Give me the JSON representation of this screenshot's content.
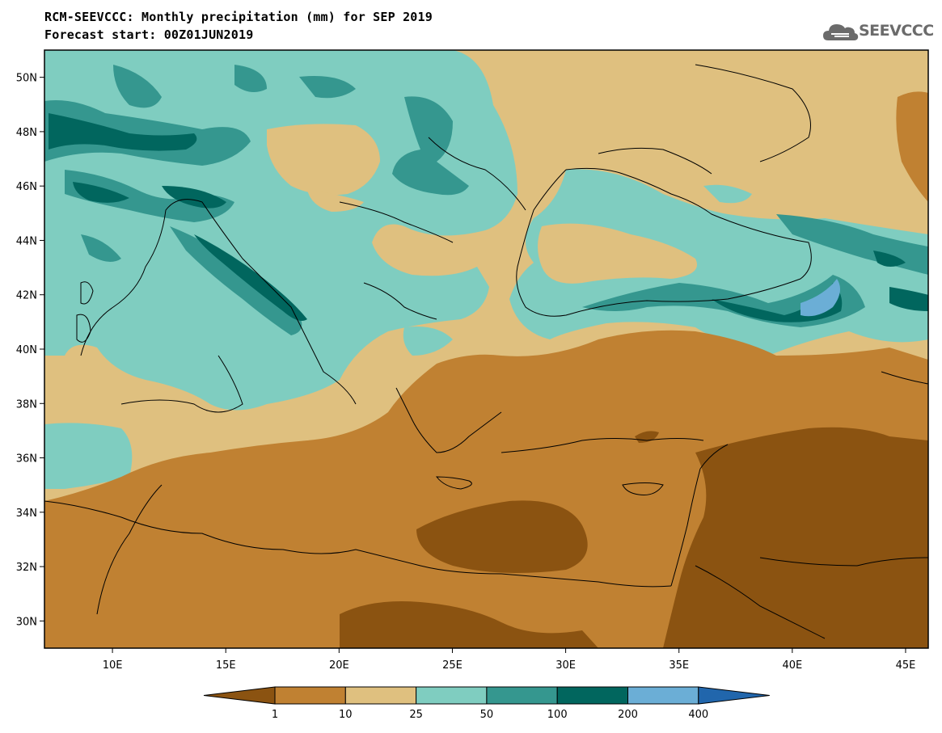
{
  "header": {
    "title_line1": "RCM-SEEVCCC: Monthly precipitation (mm) for SEP 2019",
    "title_line2": "Forecast start: 00Z01JUN2019"
  },
  "logo": {
    "text": "SEEVCCC",
    "icon": "cloud-icon"
  },
  "map": {
    "variable": "Monthly precipitation (mm)",
    "lon_range": [
      7,
      46
    ],
    "lat_range": [
      29,
      51
    ],
    "lat_ticks": [
      "50N",
      "48N",
      "46N",
      "44N",
      "42N",
      "40N",
      "38N",
      "36N",
      "34N",
      "32N",
      "30N"
    ],
    "lat_values": [
      50,
      48,
      46,
      44,
      42,
      40,
      38,
      36,
      34,
      32,
      30
    ],
    "lon_ticks": [
      "10E",
      "15E",
      "20E",
      "25E",
      "30E",
      "35E",
      "40E",
      "45E"
    ],
    "lon_values": [
      10,
      15,
      20,
      25,
      30,
      35,
      40,
      45
    ]
  },
  "colorbar": {
    "labels": [
      "1",
      "10",
      "25",
      "50",
      "100",
      "200",
      "400"
    ],
    "colors": [
      "#8b5311",
      "#c08132",
      "#dfc07f",
      "#7fcdc0",
      "#35978f",
      "#01665e",
      "#6baed6",
      "#2166ac"
    ]
  }
}
